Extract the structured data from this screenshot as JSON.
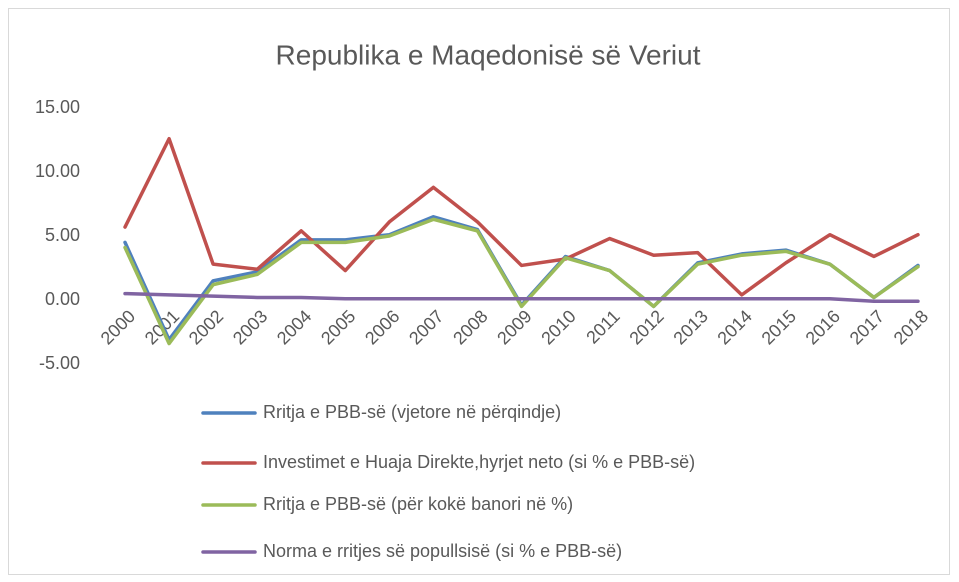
{
  "chart_data": {
    "type": "line",
    "title": "Republika e Maqedonisë së Veriut",
    "categories": [
      "2000",
      "2001",
      "2002",
      "2003",
      "2004",
      "2005",
      "2006",
      "2007",
      "2008",
      "2009",
      "2010",
      "2011",
      "2012",
      "2013",
      "2014",
      "2015",
      "2016",
      "2017",
      "2018"
    ],
    "series": [
      {
        "name": "Rritja e PBB-së (vjetore në përqindje)",
        "color": "#4f81bd",
        "values": [
          4.5,
          -3.1,
          1.5,
          2.2,
          4.7,
          4.7,
          5.1,
          6.5,
          5.5,
          -0.4,
          3.4,
          2.3,
          -0.5,
          2.9,
          3.6,
          3.9,
          2.8,
          0.2,
          2.7
        ]
      },
      {
        "name": "Investimet e Huaja Direkte,hyrjet neto (si % e PBB-së)",
        "color": "#c0504d",
        "values": [
          5.7,
          12.6,
          2.8,
          2.4,
          5.4,
          2.3,
          6.1,
          8.8,
          6.1,
          2.7,
          3.2,
          4.8,
          3.5,
          3.7,
          0.4,
          2.9,
          5.1,
          3.4,
          5.1
        ]
      },
      {
        "name": "Rritja e PBB-së (për kokë banori në %)",
        "color": "#9bbb59",
        "values": [
          4.1,
          -3.4,
          1.2,
          2.0,
          4.5,
          4.5,
          5.0,
          6.3,
          5.4,
          -0.5,
          3.3,
          2.3,
          -0.5,
          2.8,
          3.5,
          3.8,
          2.8,
          0.2,
          2.6
        ]
      },
      {
        "name": "Norma e rritjes së popullsisë (si % e PBB-së)",
        "color": "#8064a2",
        "values": [
          0.5,
          0.4,
          0.3,
          0.2,
          0.2,
          0.1,
          0.1,
          0.1,
          0.1,
          0.1,
          0.1,
          0.1,
          0.1,
          0.1,
          0.1,
          0.1,
          0.1,
          -0.1,
          -0.1
        ]
      }
    ],
    "ylim": [
      -5,
      15
    ],
    "yticks": [
      {
        "value": -5,
        "label": "-5.00"
      },
      {
        "value": 0,
        "label": "0.00"
      },
      {
        "value": 5,
        "label": "5.00"
      },
      {
        "value": 10,
        "label": "10.00"
      },
      {
        "value": 15,
        "label": "15.00"
      }
    ],
    "grid": false,
    "legend": "bottom"
  }
}
